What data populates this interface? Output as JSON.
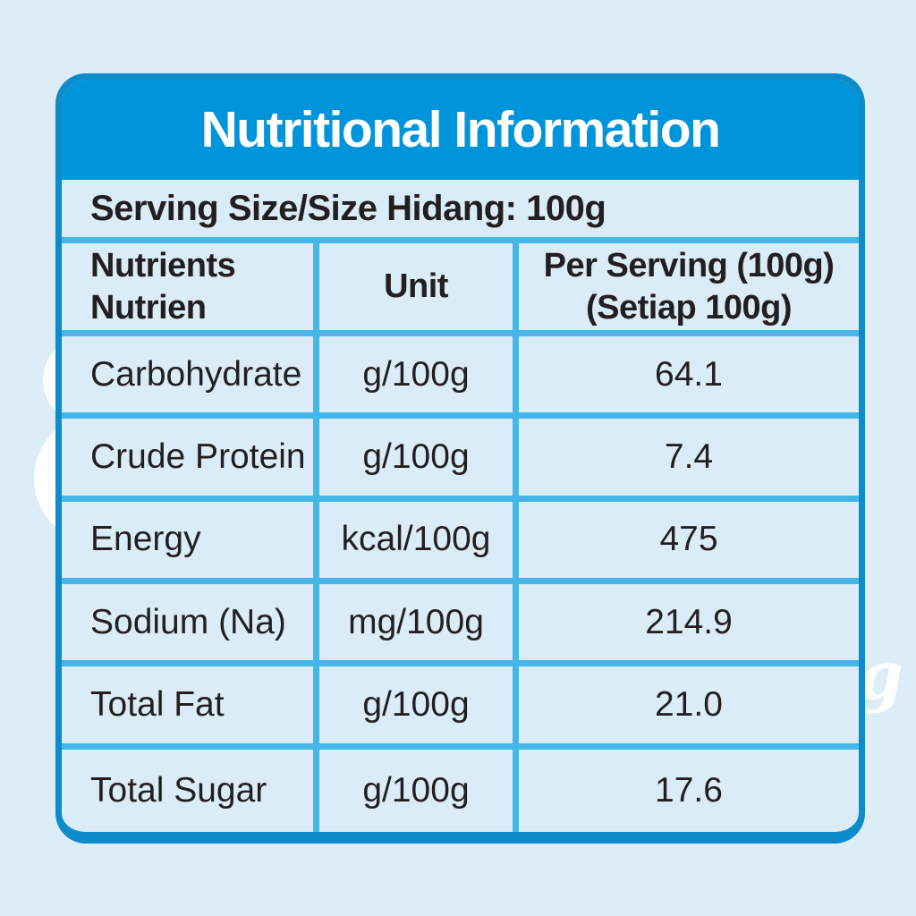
{
  "card": {
    "title": "Nutritional Information",
    "serving_line": "Serving Size/Size Hidang: 100g",
    "table": {
      "headers": {
        "nutrients_line1": "Nutrients",
        "nutrients_line2": "Nutrien",
        "unit": "Unit",
        "per_serving_line1": "Per Serving (100g)",
        "per_serving_line2": "(Setiap 100g)"
      },
      "rows": [
        {
          "nutrient": "Carbohydrate",
          "unit": "g/100g",
          "value": "64.1"
        },
        {
          "nutrient": "Crude Protein",
          "unit": "g/100g",
          "value": "7.4"
        },
        {
          "nutrient": "Energy",
          "unit": "kcal/100g",
          "value": "475"
        },
        {
          "nutrient": "Sodium (Na)",
          "unit": "mg/100g",
          "value": "214.9"
        },
        {
          "nutrient": "Total Fat",
          "unit": "g/100g",
          "value": "21.0"
        },
        {
          "nutrient": "Total Sugar",
          "unit": "g/100g",
          "value": "17.6"
        }
      ]
    }
  },
  "decorations": {
    "script_g": "g"
  },
  "colors": {
    "bg": "#dcedf8",
    "cell_bg": "#daecf8",
    "header_blue": "#0095db",
    "frame_blue": "#0e8bca",
    "grid_cyan": "#45b6e8",
    "text": "#231f20",
    "title_white": "#ffffff"
  }
}
